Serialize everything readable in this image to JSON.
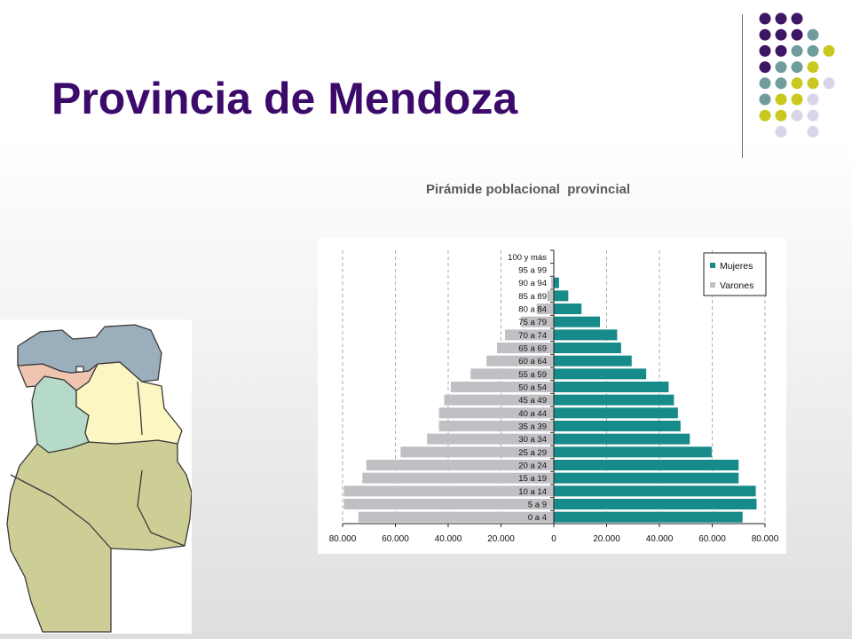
{
  "slide": {
    "title": "Provincia de Mendoza",
    "chart_caption": "Pirámide poblacional  provincial"
  },
  "colors": {
    "title": "#3b0a6b",
    "dot_palette": [
      "#3d1765",
      "#6f9d9d",
      "#c8c81e",
      "#d6d6e8"
    ],
    "mujeres": "#178a8a",
    "varones": "#c0c0c4"
  },
  "map": {
    "regions": [
      "north-blue",
      "pink",
      "green",
      "yellow",
      "khaki-south"
    ],
    "colors": {
      "blue": "#9aaebb",
      "pink": "#efc4b0",
      "green": "#b5dbc8",
      "yellow": "#fbf6c2",
      "khaki": "#cdcd96"
    }
  },
  "chart_data": {
    "type": "bar",
    "orientation": "horizontal",
    "subtype": "population-pyramid",
    "categories": [
      "0 a 4",
      "5 a 9",
      "10 a 14",
      "15 a 19",
      "20 a 24",
      "25 a 29",
      "30 a 34",
      "35 a 39",
      "40 a 44",
      "45 a 49",
      "50 a 54",
      "55 a 59",
      "60 a 64",
      "65 a 69",
      "70 a 74",
      "75 a 79",
      "80 a 84",
      "85 a 89",
      "90 a 94",
      "95 a 99",
      "100 y más"
    ],
    "series": [
      {
        "name": "Mujeres",
        "values": [
          71500,
          76800,
          76500,
          70000,
          70000,
          59800,
          51500,
          48000,
          47000,
          45500,
          43500,
          35000,
          29500,
          25500,
          24000,
          17500,
          10500,
          5500,
          2000,
          0,
          0
        ]
      },
      {
        "name": "Varones",
        "values": [
          -74000,
          -79500,
          -79500,
          -72500,
          -71000,
          -58000,
          -48000,
          -43500,
          -43500,
          -41500,
          -39000,
          -31500,
          -25500,
          -21500,
          -18500,
          -12500,
          -6500,
          -2500,
          -1000,
          0,
          0
        ]
      }
    ],
    "xlim": [
      -80000,
      80000
    ],
    "xticks": [
      -80000,
      -60000,
      -40000,
      -20000,
      0,
      20000,
      40000,
      60000,
      80000
    ],
    "xtick_labels": [
      "80.000",
      "60.000",
      "40.000",
      "20.000",
      "0",
      "20.000",
      "40.000",
      "60.000",
      "80.000"
    ],
    "gridlines": "vertical dashed",
    "legend_position": "top-right",
    "xlabel": "",
    "ylabel": ""
  }
}
